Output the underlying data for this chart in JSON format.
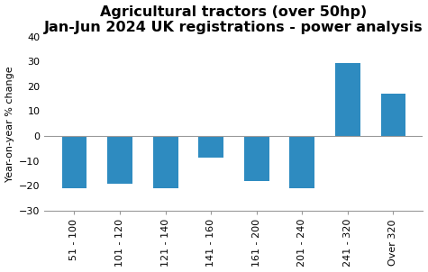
{
  "categories": [
    "51 - 100",
    "101 - 120",
    "121 - 140",
    "141 - 160",
    "161 - 200",
    "201 - 240",
    "241 - 320",
    "Over 320"
  ],
  "values": [
    -21,
    -19,
    -21,
    -8.5,
    -18,
    -21,
    29.5,
    17
  ],
  "bar_color": "#2E8BC0",
  "title_line1": "Agricultural tractors (over 50hp)",
  "title_line2": "Jan-Jun 2024 UK registrations - power analysis",
  "ylabel": "Year-on-year % change",
  "ylim": [
    -30,
    40
  ],
  "yticks": [
    -30,
    -20,
    -10,
    0,
    10,
    20,
    30,
    40
  ],
  "title_fontsize": 11.5,
  "label_fontsize": 8,
  "tick_fontsize": 8,
  "background_color": "#ffffff"
}
